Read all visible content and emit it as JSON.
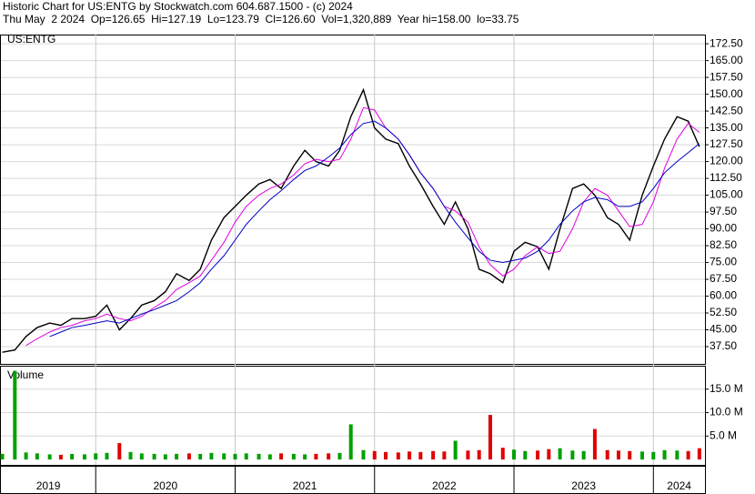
{
  "header": [
    "Historic Chart for US:ENTG by Stockwatch.com 604.687.1500 - (c) 2024",
    "Thu May  2 2024  Op=126.65  Hi=127.19  Lo=123.79  Cl=126.60  Vol=1,320,889  Year hi=158.00  lo=33.75"
  ],
  "chart_data": [
    {
      "type": "line",
      "title": "US:ENTG",
      "x": [
        2019.33,
        2019.42,
        2019.5,
        2019.58,
        2019.67,
        2019.75,
        2019.83,
        2019.92,
        2020.0,
        2020.08,
        2020.17,
        2020.25,
        2020.33,
        2020.42,
        2020.5,
        2020.58,
        2020.67,
        2020.75,
        2020.83,
        2020.92,
        2021.0,
        2021.08,
        2021.17,
        2021.25,
        2021.33,
        2021.42,
        2021.5,
        2021.58,
        2021.67,
        2021.75,
        2021.83,
        2021.92,
        2022.0,
        2022.08,
        2022.17,
        2022.25,
        2022.33,
        2022.42,
        2022.5,
        2022.58,
        2022.67,
        2022.75,
        2022.83,
        2022.92,
        2023.0,
        2023.08,
        2023.17,
        2023.25,
        2023.33,
        2023.42,
        2023.5,
        2023.58,
        2023.67,
        2023.75,
        2023.83,
        2023.92,
        2024.0,
        2024.08,
        2024.17,
        2024.25,
        2024.33
      ],
      "series": [
        {
          "color": "#000000",
          "values": [
            35,
            36,
            42,
            46,
            48,
            47,
            50,
            50,
            51,
            56,
            45,
            50,
            56,
            58,
            62,
            70,
            67,
            72,
            85,
            95,
            100,
            105,
            110,
            112,
            108,
            118,
            125,
            120,
            118,
            125,
            140,
            152,
            135,
            130,
            128,
            118,
            110,
            100,
            92,
            102,
            90,
            72,
            70,
            66,
            80,
            84,
            82,
            72,
            90,
            108,
            110,
            105,
            95,
            92,
            85,
            105,
            118,
            130,
            140,
            138,
            126.6
          ]
        },
        {
          "color": "#e000e0",
          "values": [
            null,
            null,
            38,
            41,
            44,
            46,
            47,
            49,
            50,
            52,
            50,
            49,
            51,
            55,
            58,
            63,
            66,
            69,
            76,
            84,
            93,
            100,
            105,
            108,
            110,
            114,
            119,
            121,
            120,
            121,
            130,
            144,
            143,
            135,
            130,
            123,
            115,
            108,
            100,
            98,
            93,
            82,
            74,
            69,
            72,
            78,
            82,
            79,
            80,
            90,
            102,
            108,
            105,
            98,
            91,
            92,
            102,
            117,
            130,
            137,
            133
          ]
        },
        {
          "color": "#0000c0",
          "values": [
            null,
            null,
            null,
            null,
            42,
            44,
            46,
            47,
            48,
            49,
            48,
            50,
            52,
            54,
            56,
            58,
            62,
            66,
            72,
            78,
            85,
            92,
            98,
            103,
            107,
            112,
            116,
            118,
            122,
            126,
            132,
            137,
            138,
            135,
            130,
            123,
            115,
            108,
            100,
            93,
            86,
            80,
            76,
            75,
            76,
            77,
            80,
            85,
            92,
            98,
            102,
            104,
            103,
            100,
            100,
            102,
            108,
            115,
            120,
            124,
            128
          ]
        }
      ],
      "xlim": [
        2019.32,
        2024.37
      ],
      "xticks": [
        2019,
        2020,
        2021,
        2022,
        2023,
        2024
      ],
      "ylim": [
        29.8,
        176.6
      ],
      "yticks": [
        {
          "value": 37.5,
          "label": "37.50"
        },
        {
          "value": 45,
          "label": "45.00"
        },
        {
          "value": 52.5,
          "label": "52.50"
        },
        {
          "value": 60,
          "label": "60.00"
        },
        {
          "value": 67.5,
          "label": "67.50"
        },
        {
          "value": 75,
          "label": "75.00"
        },
        {
          "value": 82.5,
          "label": "82.50"
        },
        {
          "value": 90,
          "label": "90.00"
        },
        {
          "value": 97.5,
          "label": "97.50"
        },
        {
          "value": 105,
          "label": "105.00"
        },
        {
          "value": 112.5,
          "label": "112.50"
        },
        {
          "value": 120,
          "label": "120.00"
        },
        {
          "value": 127.5,
          "label": "127.50"
        },
        {
          "value": 135,
          "label": "135.00"
        },
        {
          "value": 142.5,
          "label": "142.50"
        },
        {
          "value": 150,
          "label": "150.00"
        },
        {
          "value": 157.5,
          "label": "157.50"
        },
        {
          "value": 165,
          "label": "165.00"
        },
        {
          "value": 172.5,
          "label": "172.50"
        }
      ],
      "grid": true
    },
    {
      "type": "bar",
      "title": "Volume",
      "up_color": "#00a000",
      "down_color": "#e00000",
      "values": [
        1.2,
        18.9,
        1.5,
        1.3,
        1.1,
        1.0,
        1.2,
        1.1,
        1.3,
        1.4,
        3.5,
        1.6,
        1.3,
        1.2,
        1.1,
        1.2,
        1.3,
        1.2,
        1.4,
        1.3,
        1.2,
        1.3,
        1.2,
        1.1,
        1.3,
        1.2,
        1.1,
        1.2,
        1.3,
        1.4,
        7.5,
        2.0,
        1.8,
        1.6,
        1.5,
        1.7,
        1.6,
        1.8,
        1.7,
        4.0,
        1.9,
        2.0,
        9.5,
        2.5,
        2.1,
        1.8,
        1.9,
        2.2,
        2.4,
        1.9,
        1.8,
        6.5,
        2.0,
        1.9,
        1.8,
        1.7,
        1.6,
        2.0,
        1.9,
        1.8,
        2.4
      ],
      "ylim": [
        -1.15,
        19.8
      ],
      "yticks": [
        {
          "value": 5,
          "label": "5.0 M"
        },
        {
          "value": 10,
          "label": "10.0 M"
        },
        {
          "value": 15,
          "label": "15.0 M"
        }
      ],
      "grid": true
    }
  ]
}
